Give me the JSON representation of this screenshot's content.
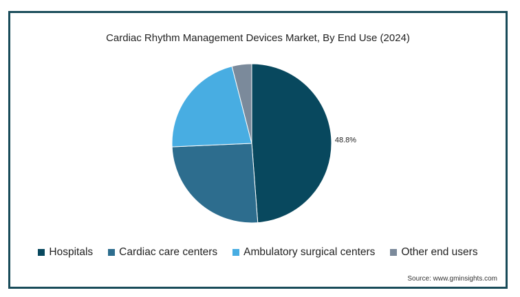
{
  "chart_data": {
    "type": "pie",
    "title": "Cardiac Rhythm Management Devices Market, By End Use (2024)",
    "categories": [
      "Hospitals",
      "Cardiac care centers",
      "Ambulatory surgical centers",
      "Other end users"
    ],
    "values": [
      48.8,
      25.5,
      21.7,
      4.0
    ],
    "colors": [
      "#08485e",
      "#2d6d8e",
      "#48ade2",
      "#7b8a9b"
    ],
    "data_labels": [
      "48.8%",
      "",
      "",
      ""
    ],
    "legend_position": "bottom"
  },
  "source": "Source: www.gminsights.com"
}
